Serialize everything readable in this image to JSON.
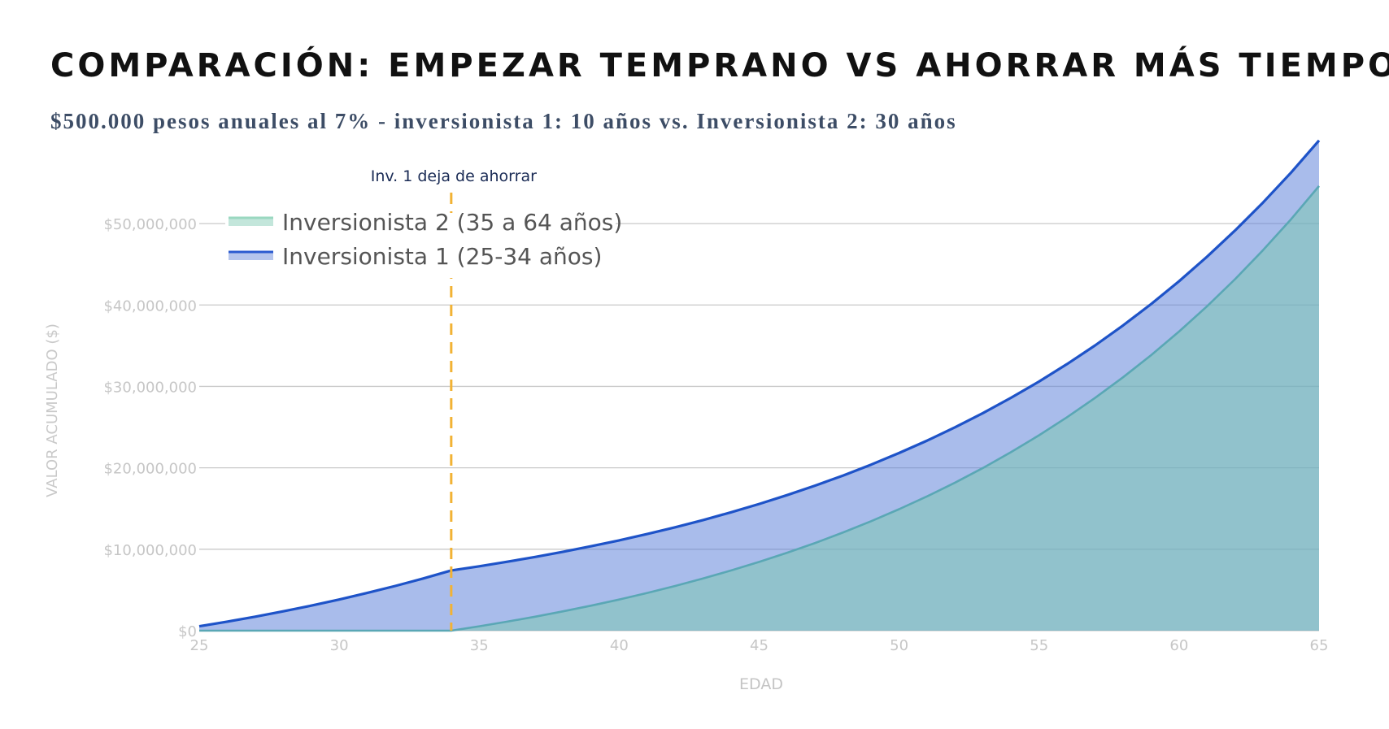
{
  "header": {
    "title": "COMPARACIÓN: EMPEZAR TEMPRANO VS AHORRAR MÁS TIEMPO",
    "subtitle": "$500.000 pesos anuales al 7% - inversionista 1: 10 años vs. Inversionista 2: 30 años"
  },
  "chart_data": {
    "type": "area",
    "xlabel": "EDAD",
    "ylabel": "VALOR ACUMULADO ($)",
    "xlim": [
      25,
      65
    ],
    "ylim": [
      0,
      55000000
    ],
    "x_ticks": [
      25,
      30,
      35,
      40,
      45,
      50,
      55,
      60,
      65
    ],
    "y_ticks": [
      0,
      10000000,
      20000000,
      30000000,
      40000000,
      50000000
    ],
    "y_tick_labels": [
      "$0",
      "$10,000,000",
      "$20,000,000",
      "$30,000,000",
      "$40,000,000",
      "$50,000,000"
    ],
    "grid": true,
    "legend_position": "top-left",
    "annotation": {
      "x": 34,
      "label": "Inv. 1 deja de ahorrar",
      "color": "#f2b234"
    },
    "x": [
      25,
      26,
      27,
      28,
      29,
      30,
      31,
      32,
      33,
      34,
      35,
      36,
      37,
      38,
      39,
      40,
      41,
      42,
      43,
      44,
      45,
      46,
      47,
      48,
      49,
      50,
      51,
      52,
      53,
      54,
      55,
      56,
      57,
      58,
      59,
      60,
      61,
      62,
      63,
      64,
      65
    ],
    "series": [
      {
        "name": "Inversionista 2 (35 a 64 años)",
        "line_color": "#5aa7b5",
        "fill_color": "#7bc8b0",
        "legend_color": "#9ad8c0",
        "values": [
          0,
          0,
          0,
          0,
          0,
          0,
          0,
          0,
          0,
          0,
          535000,
          1107450,
          1719972,
          2375370,
          3076646,
          3827011,
          4629902,
          5488995,
          6408225,
          7391801,
          8444227,
          9570323,
          10775246,
          12064514,
          13444030,
          14920112,
          16499520,
          18189487,
          19997751,
          21932593,
          24002875,
          26218076,
          28588341,
          31124525,
          33838242,
          36741919,
          39848854,
          43173273,
          46730402,
          50536530,
          54609087
        ]
      },
      {
        "name": "Inversionista 1 (25-34 años)",
        "line_color": "#1e53c8",
        "fill_color": "#5b7fd8",
        "legend_color": "#2b5bd0",
        "values": [
          535000,
          1107450,
          1719972,
          2375370,
          3076646,
          3827011,
          4629902,
          5488995,
          6408225,
          7391801,
          7909227,
          8462873,
          9055274,
          9689143,
          10367383,
          11093100,
          11869617,
          12700490,
          13589524,
          14540791,
          15558646,
          16647751,
          17813093,
          19060010,
          20394210,
          21821805,
          23349331,
          24983785,
          26732649,
          28603935,
          30606210,
          32748645,
          35041050,
          37493924,
          40118498,
          42926793,
          45931669,
          49146885,
          52587167,
          56268269,
          60207048
        ]
      }
    ]
  }
}
